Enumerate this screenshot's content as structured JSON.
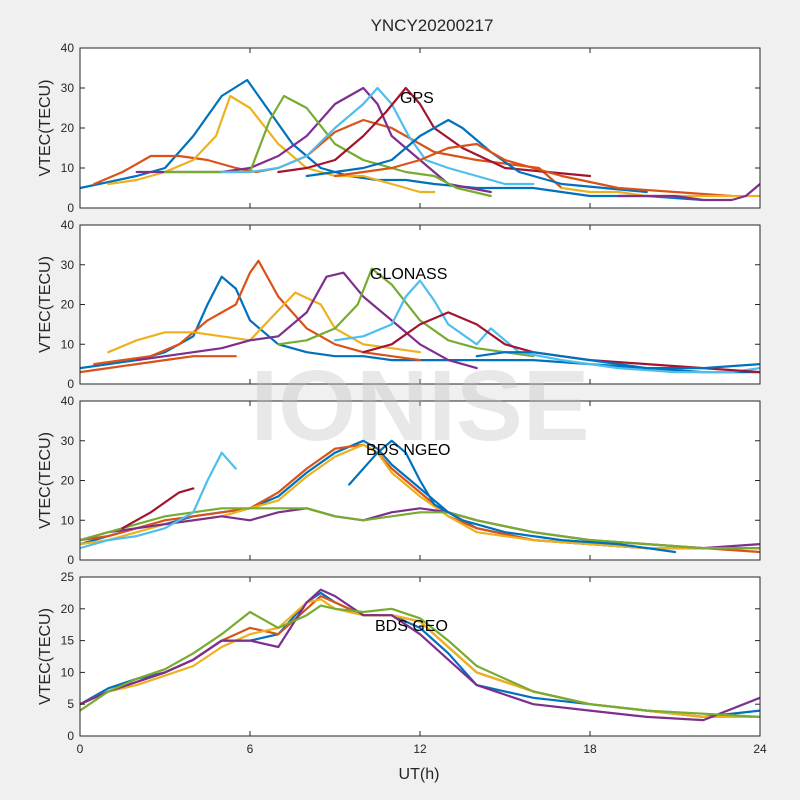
{
  "figure": {
    "title": "YNCY20200217",
    "xlabel": "UT(h)",
    "watermark": "IONISE",
    "colors": [
      "#0072BD",
      "#D95319",
      "#EDB120",
      "#7E2F8E",
      "#77AC30",
      "#4DBEEE",
      "#A2142F"
    ]
  },
  "chart_data": [
    {
      "type": "line",
      "label": "GPS",
      "ylabel": "VTEC(TECU)",
      "xlim": [
        0,
        24
      ],
      "xticks": [
        "0",
        "6",
        "12",
        "18",
        "24"
      ],
      "ylim": [
        0,
        40
      ],
      "yticks": [
        "0",
        "10",
        "20",
        "30",
        "40"
      ],
      "grid": false,
      "series": [
        {
          "x": [
            0,
            2,
            3,
            4,
            5,
            5.9,
            6.5,
            7.5,
            8.5,
            9.5,
            10.5,
            11.5,
            12.5,
            14,
            16,
            18,
            20,
            22
          ],
          "y": [
            5,
            8,
            10,
            18,
            28,
            32,
            26,
            16,
            10,
            8,
            7,
            7,
            6,
            5,
            5,
            3,
            3,
            2
          ]
        },
        {
          "x": [
            0.5,
            1.5,
            2.5,
            3.5,
            4.5,
            5.5,
            6.2,
            7,
            8,
            9,
            10,
            11,
            12.5,
            14,
            16.2,
            17
          ],
          "y": [
            6,
            9,
            13,
            13,
            12,
            10,
            9,
            10,
            13,
            19,
            22,
            20,
            14,
            12,
            10,
            5
          ]
        },
        {
          "x": [
            1,
            2,
            3,
            4,
            4.8,
            5.3,
            6,
            7,
            8,
            9,
            10,
            11,
            11.5,
            12,
            12.5
          ],
          "y": [
            6,
            7,
            9,
            12,
            18,
            28,
            25,
            16,
            10,
            8,
            8,
            6,
            5,
            4,
            4
          ]
        },
        {
          "x": [
            2,
            3,
            4,
            5,
            6,
            7,
            8,
            9,
            10,
            10.5,
            11,
            12,
            13,
            14.5
          ],
          "y": [
            9,
            9,
            9,
            9,
            10,
            13,
            18,
            26,
            30,
            26,
            18,
            12,
            6,
            4
          ]
        },
        {
          "x": [
            3,
            4,
            5,
            6,
            6.7,
            7.2,
            8,
            9,
            10,
            11,
            11.5,
            12.5,
            13.3,
            14.5
          ],
          "y": [
            9,
            9,
            9,
            9,
            22,
            28,
            25,
            16,
            12,
            10,
            9,
            8,
            5,
            3
          ]
        },
        {
          "x": [
            5,
            6,
            7,
            8,
            9,
            10,
            10.5,
            11,
            11.6,
            12.2,
            13,
            14,
            15,
            16
          ],
          "y": [
            9,
            9,
            10,
            13,
            20,
            26,
            30,
            26,
            18,
            12,
            10,
            8,
            6,
            6
          ]
        },
        {
          "x": [
            7,
            8,
            9,
            10,
            10.8,
            11.5,
            12,
            12.5,
            13.5,
            15,
            16.5,
            18
          ],
          "y": [
            9,
            10,
            12,
            18,
            24,
            30,
            26,
            20,
            15,
            10,
            9,
            8
          ]
        },
        {
          "x": [
            8,
            9,
            10,
            11,
            12,
            13,
            13.5,
            14.5,
            15.5,
            17,
            18.5,
            20
          ],
          "y": [
            8,
            9,
            10,
            12,
            18,
            22,
            20,
            14,
            9,
            6,
            5,
            4
          ]
        },
        {
          "x": [
            9,
            10,
            11,
            12,
            13,
            14,
            15,
            17,
            19,
            21,
            23
          ],
          "y": [
            8,
            9,
            10,
            12,
            15,
            16,
            12,
            8,
            5,
            4,
            3
          ]
        },
        {
          "x": [
            17,
            18,
            19,
            20,
            21,
            22,
            23,
            24
          ],
          "y": [
            5,
            4,
            4,
            3,
            3,
            3,
            3,
            3
          ]
        },
        {
          "x": [
            19,
            20,
            21,
            22,
            23,
            23.5,
            24
          ],
          "y": [
            3,
            3,
            3,
            2,
            2,
            3,
            6
          ]
        }
      ]
    },
    {
      "type": "line",
      "label": "GLONASS",
      "ylabel": "VTEC(TECU)",
      "xlim": [
        0,
        24
      ],
      "xticks": [
        "0",
        "6",
        "12",
        "18",
        "24"
      ],
      "ylim": [
        0,
        40
      ],
      "yticks": [
        "0",
        "10",
        "20",
        "30",
        "40"
      ],
      "grid": false,
      "series": [
        {
          "x": [
            0,
            1,
            2,
            3,
            4,
            4.5,
            5,
            5.5,
            6,
            7,
            8,
            9,
            10,
            11,
            12,
            13,
            14,
            16,
            18,
            20,
            22,
            24
          ],
          "y": [
            4,
            5,
            6,
            8,
            12,
            20,
            27,
            24,
            16,
            10,
            8,
            7,
            7,
            6,
            6,
            6,
            6,
            6,
            5,
            4,
            3,
            3
          ]
        },
        {
          "x": [
            0.5,
            1.5,
            2.5,
            3.5,
            4.5,
            5.5,
            6,
            6.3,
            7,
            8,
            9,
            10,
            11,
            12
          ],
          "y": [
            5,
            6,
            7,
            10,
            16,
            20,
            28,
            31,
            22,
            14,
            10,
            8,
            7,
            6
          ]
        },
        {
          "x": [
            1,
            2,
            3,
            4,
            5,
            6,
            6.8,
            7.6,
            8.5,
            9,
            10,
            11,
            12
          ],
          "y": [
            8,
            11,
            13,
            13,
            12,
            11,
            17,
            23,
            20,
            14,
            10,
            9,
            8
          ]
        },
        {
          "x": [
            2,
            3,
            4,
            5,
            6,
            7,
            8,
            8.7,
            9.3,
            10,
            11,
            12,
            13,
            14
          ],
          "y": [
            6,
            7,
            8,
            9,
            11,
            12,
            18,
            27,
            28,
            22,
            16,
            10,
            6,
            4
          ]
        },
        {
          "x": [
            7,
            8,
            9,
            9.8,
            10.3,
            11,
            12,
            13,
            14,
            15,
            16
          ],
          "y": [
            10,
            11,
            14,
            20,
            29,
            25,
            16,
            11,
            9,
            8,
            7
          ]
        },
        {
          "x": [
            9,
            10,
            11,
            11.5,
            12,
            12.5,
            13,
            14,
            14.5,
            15.5,
            17,
            19,
            21,
            23,
            24
          ],
          "y": [
            11,
            12,
            15,
            22,
            26,
            21,
            15,
            10,
            14,
            8,
            6,
            4,
            3,
            3,
            4
          ]
        },
        {
          "x": [
            10,
            11,
            12,
            13,
            14,
            15,
            16,
            17,
            18,
            20,
            22,
            24
          ],
          "y": [
            8,
            10,
            15,
            18,
            15,
            10,
            8,
            7,
            6,
            5,
            4,
            3
          ]
        },
        {
          "x": [
            14,
            15,
            16,
            17,
            18,
            19,
            20,
            22,
            24
          ],
          "y": [
            7,
            8,
            8,
            7,
            6,
            5,
            4,
            4,
            5
          ]
        },
        {
          "x": [
            0,
            1,
            2,
            3,
            4,
            5,
            5.5
          ],
          "y": [
            3,
            4,
            5,
            6,
            7,
            7,
            7
          ]
        }
      ]
    },
    {
      "type": "line",
      "label": "BDS NGEO",
      "ylabel": "VTEC(TECU)",
      "xlim": [
        0,
        24
      ],
      "xticks": [
        "0",
        "6",
        "12",
        "18",
        "24"
      ],
      "ylim": [
        0,
        40
      ],
      "yticks": [
        "0",
        "10",
        "20",
        "30",
        "40"
      ],
      "grid": false,
      "series": [
        {
          "x": [
            0,
            1,
            2,
            3,
            4,
            5,
            6,
            7,
            8,
            9,
            10,
            10.5,
            11,
            12,
            13,
            14,
            16,
            18,
            20,
            22,
            24
          ],
          "y": [
            4,
            6,
            8,
            9,
            11,
            12,
            13,
            16,
            22,
            27,
            30,
            28,
            24,
            18,
            12,
            8,
            5,
            4,
            3,
            3,
            3
          ]
        },
        {
          "x": [
            0,
            1,
            2,
            3,
            4,
            5,
            6,
            7,
            8,
            9,
            10,
            10.5,
            11,
            12,
            13,
            14,
            16,
            18,
            20,
            22,
            24
          ],
          "y": [
            5,
            6,
            8,
            10,
            11,
            12,
            13,
            17,
            23,
            28,
            29,
            27,
            23,
            17,
            11,
            8,
            5,
            4,
            3,
            3,
            2
          ]
        },
        {
          "x": [
            0,
            1,
            2,
            3,
            4,
            5,
            6,
            7,
            8,
            9,
            10,
            10.5,
            11,
            12,
            13,
            14,
            16,
            18,
            20,
            22,
            24
          ],
          "y": [
            4,
            5,
            7,
            9,
            10,
            11,
            13,
            15,
            21,
            26,
            29,
            27,
            22,
            16,
            11,
            7,
            5,
            4,
            3,
            3,
            3
          ]
        },
        {
          "x": [
            0,
            1,
            2,
            3,
            4,
            5,
            6,
            7,
            8,
            9,
            10,
            11,
            12,
            13,
            14,
            16,
            18,
            20,
            22,
            24
          ],
          "y": [
            5,
            7,
            8,
            9,
            10,
            11,
            10,
            12,
            13,
            11,
            10,
            12,
            13,
            12,
            10,
            7,
            5,
            4,
            3,
            4
          ]
        },
        {
          "x": [
            0,
            1,
            2,
            3,
            4,
            5,
            6,
            7,
            8,
            9,
            10,
            11,
            12,
            13,
            14,
            16,
            18,
            20,
            22,
            24
          ],
          "y": [
            5,
            7,
            9,
            11,
            12,
            13,
            13,
            13,
            13,
            11,
            10,
            11,
            12,
            12,
            10,
            7,
            5,
            4,
            3,
            3
          ]
        },
        {
          "x": [
            0,
            1,
            2,
            3,
            4,
            4.5,
            5,
            5.5
          ],
          "y": [
            3,
            5,
            6,
            8,
            12,
            20,
            27,
            23
          ]
        },
        {
          "x": [
            1.5,
            2.5,
            3.5,
            4
          ],
          "y": [
            8,
            12,
            17,
            18
          ]
        },
        {
          "x": [
            9.5,
            10.5,
            11,
            11.5,
            12,
            12.5,
            13.5,
            15,
            17,
            19,
            21
          ],
          "y": [
            19,
            27,
            30,
            27,
            20,
            14,
            10,
            7,
            5,
            4,
            2
          ]
        }
      ]
    },
    {
      "type": "line",
      "label": "BDS GEO",
      "ylabel": "VTEC(TECU)",
      "xlim": [
        0,
        24
      ],
      "xticks": [
        "0",
        "6",
        "12",
        "18",
        "24"
      ],
      "ylim": [
        0,
        25
      ],
      "yticks": [
        "0",
        "5",
        "10",
        "15",
        "20",
        "25"
      ],
      "grid": false,
      "series": [
        {
          "x": [
            0,
            1,
            2,
            3,
            4,
            5,
            6,
            7,
            8,
            8.5,
            9,
            10,
            11,
            12,
            13,
            14,
            16,
            18,
            20,
            22,
            24
          ],
          "y": [
            5,
            7.5,
            9,
            10,
            12,
            15,
            15,
            16,
            21,
            22.5,
            21,
            19,
            19,
            17,
            13,
            8,
            6,
            5,
            4,
            3,
            4
          ]
        },
        {
          "x": [
            0,
            1,
            2,
            3,
            4,
            5,
            6,
            7,
            8,
            8.5,
            9,
            10,
            11,
            12,
            13,
            14,
            16,
            18,
            20,
            22,
            24
          ],
          "y": [
            5,
            7,
            8.5,
            10,
            12,
            15,
            17,
            16,
            20,
            22,
            21,
            19,
            19,
            18,
            14,
            10,
            7,
            5,
            4,
            3,
            3
          ]
        },
        {
          "x": [
            0,
            1,
            2,
            3,
            4,
            5,
            6,
            7,
            8,
            8.5,
            9,
            10,
            11,
            12,
            13,
            14,
            16,
            18,
            20,
            22,
            24
          ],
          "y": [
            5,
            7,
            8,
            9.5,
            11,
            14,
            16,
            17,
            21,
            21.5,
            20,
            19,
            19,
            18,
            14,
            10,
            7,
            5,
            4,
            3,
            3
          ]
        },
        {
          "x": [
            0,
            1,
            2,
            3,
            4,
            5,
            6,
            7,
            8,
            8.5,
            9,
            10,
            11,
            12,
            13,
            14,
            16,
            18,
            20,
            22,
            24
          ],
          "y": [
            5,
            7,
            8.5,
            10,
            12,
            15,
            15,
            14,
            21,
            23,
            22,
            19,
            19,
            16,
            12,
            8,
            5,
            4,
            3,
            2.5,
            6
          ]
        },
        {
          "x": [
            0,
            1,
            2,
            3,
            4,
            5,
            6,
            7,
            8,
            8.5,
            9,
            10,
            11,
            12,
            13,
            14,
            16,
            18,
            20,
            22,
            24
          ],
          "y": [
            4,
            7,
            9,
            10.5,
            13,
            16,
            19.5,
            17,
            19,
            20.5,
            20,
            19.5,
            20,
            18.5,
            15,
            11,
            7,
            5,
            4,
            3.5,
            3
          ]
        }
      ]
    }
  ]
}
